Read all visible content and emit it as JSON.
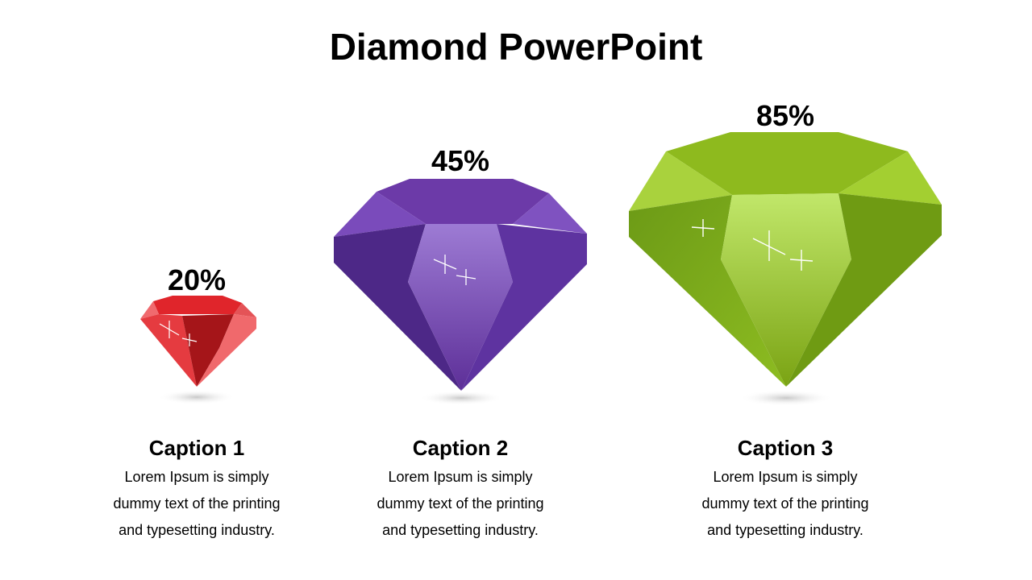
{
  "slide": {
    "title": "Diamond PowerPoint"
  },
  "gems": [
    {
      "percent": "20%",
      "value": 20,
      "color": "#d9262b",
      "caption": "Caption 1",
      "lines": [
        "Lorem Ipsum is simply",
        "dummy text of the printing",
        "and typesetting industry."
      ]
    },
    {
      "percent": "45%",
      "value": 45,
      "color": "#6a3ba8",
      "caption": "Caption 2",
      "lines": [
        "Lorem Ipsum is simply",
        "dummy text of the printing",
        "and typesetting industry."
      ]
    },
    {
      "percent": "85%",
      "value": 85,
      "color": "#8cbb1f",
      "caption": "Caption 3",
      "lines": [
        "Lorem Ipsum is simply",
        "dummy text of the printing",
        "and typesetting industry."
      ]
    }
  ]
}
